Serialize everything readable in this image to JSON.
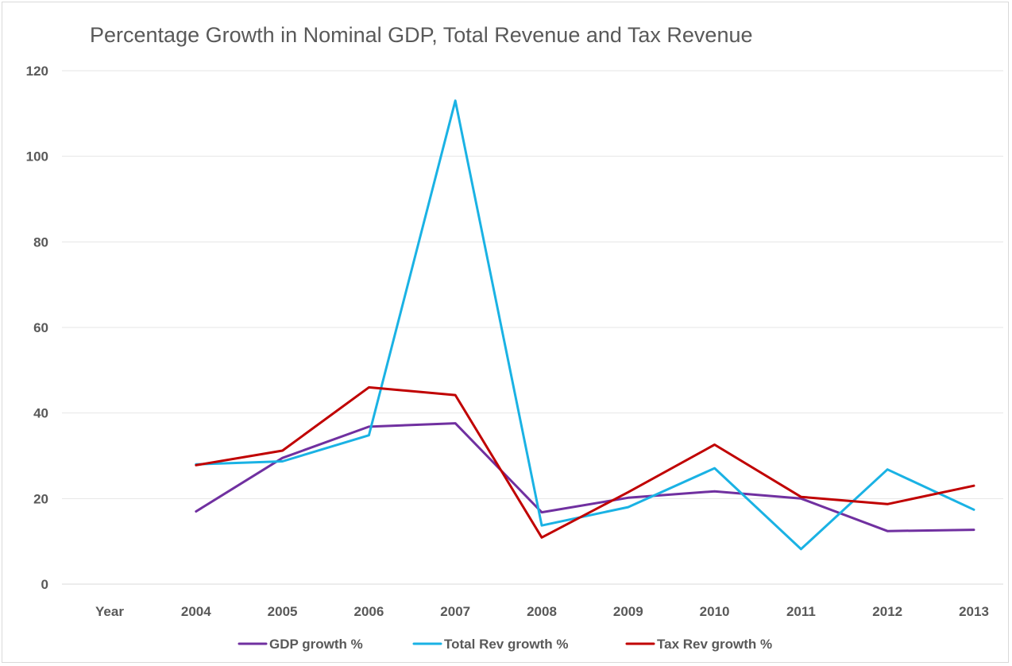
{
  "chart_data": {
    "type": "line",
    "title": "Percentage Growth in Nominal GDP, Total Revenue and Tax Revenue",
    "categories": [
      "Year",
      "2004",
      "2005",
      "2006",
      "2007",
      "2008",
      "2009",
      "2010",
      "2011",
      "2012",
      "2013"
    ],
    "yticks": [
      "0",
      "20",
      "40",
      "60",
      "80",
      "100",
      "120"
    ],
    "ylim": [
      0,
      120
    ],
    "grid": true,
    "legend_position": "bottom",
    "series": [
      {
        "name": "GDP growth %",
        "color": "#7030a0",
        "values": [
          null,
          17,
          29.5,
          36.8,
          37.6,
          16.8,
          20.2,
          21.7,
          20,
          12.4,
          12.7
        ]
      },
      {
        "name": "Total Rev growth %",
        "color": "#1ab2e4",
        "values": [
          null,
          28,
          28.7,
          34.8,
          113,
          13.7,
          18,
          27.1,
          8.2,
          26.8,
          17.4
        ]
      },
      {
        "name": "Tax Rev growth %",
        "color": "#c00000",
        "values": [
          null,
          27.8,
          31.2,
          46,
          44.2,
          10.9,
          21.5,
          32.6,
          20.4,
          18.7,
          23
        ]
      }
    ]
  }
}
